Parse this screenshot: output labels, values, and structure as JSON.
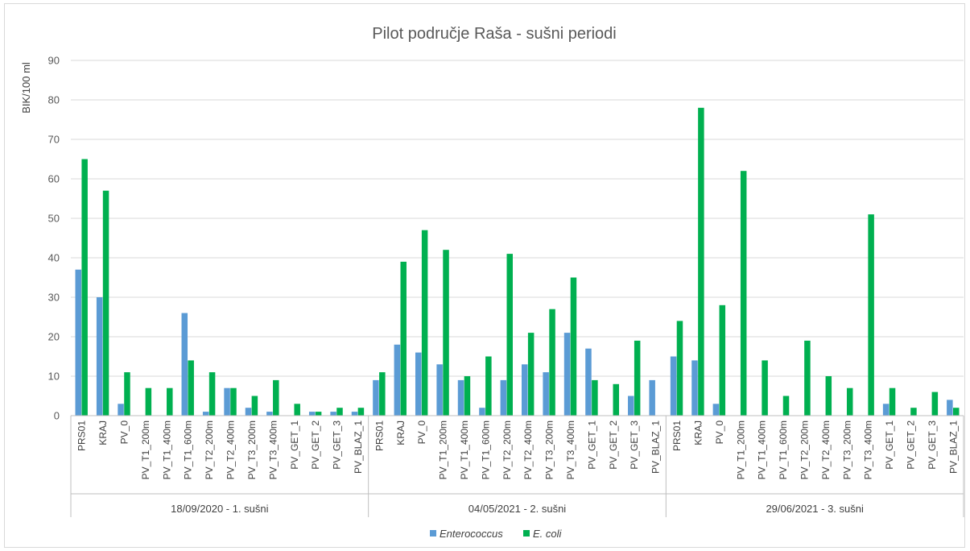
{
  "chart_data": {
    "type": "bar",
    "title": "Pilot područje Raša - sušni periodi",
    "xlabel": "",
    "ylabel": "BIK/100 ml",
    "ylim": [
      0,
      90
    ],
    "yticks": [
      0,
      10,
      20,
      30,
      40,
      50,
      60,
      70,
      80,
      90
    ],
    "grid": true,
    "legend_position": "bottom",
    "colors": {
      "Enterococcus": "#5b9bd5",
      "E. coli": "#00b050"
    },
    "groups": [
      {
        "label": "18/09/2020 - 1. sušni",
        "categories": [
          "PRS01",
          "KRAJ",
          "PV_0",
          "PV_T1_200m",
          "PV_T1_400m",
          "PV_T1_600m",
          "PV_T2_200m",
          "PV_T2_400m",
          "PV_T3_200m",
          "PV_T3_400m",
          "PV_GET_1",
          "PV_GET_2",
          "PV_GET_3",
          "PV_BLAZ_1"
        ]
      },
      {
        "label": "04/05/2021 - 2. sušni",
        "categories": [
          "PRS01",
          "KRAJ",
          "PV_0",
          "PV_T1_200m",
          "PV_T1_400m",
          "PV_T1_600m",
          "PV_T2_200m",
          "PV_T2_400m",
          "PV_T3_200m",
          "PV_T3_400m",
          "PV_GET_1",
          "PV_GET_2",
          "PV_GET_3",
          "PV_BLAZ_1"
        ]
      },
      {
        "label": "29/06/2021 - 3. sušni",
        "categories": [
          "PRS01",
          "KRAJ",
          "PV_0",
          "PV_T1_200m",
          "PV_T1_400m",
          "PV_T1_600m",
          "PV_T2_200m",
          "PV_T2_400m",
          "PV_T3_200m",
          "PV_T3_400m",
          "PV_GET_1",
          "PV_GET_2",
          "PV_GET_3",
          "PV_BLAZ_1"
        ]
      }
    ],
    "series": [
      {
        "name": "Enterococcus",
        "values": [
          37,
          30,
          3,
          0,
          0,
          26,
          1,
          7,
          2,
          1,
          0,
          1,
          1,
          1,
          9,
          18,
          16,
          13,
          9,
          2,
          9,
          13,
          11,
          21,
          17,
          0,
          5,
          9,
          15,
          14,
          3,
          0,
          0,
          0,
          0,
          0,
          0,
          0,
          3,
          0,
          0,
          4
        ]
      },
      {
        "name": "E. coli",
        "values": [
          65,
          57,
          11,
          7,
          7,
          14,
          11,
          7,
          5,
          9,
          3,
          1,
          2,
          2,
          11,
          39,
          47,
          42,
          10,
          15,
          41,
          21,
          27,
          35,
          9,
          8,
          19,
          0,
          24,
          78,
          28,
          62,
          14,
          5,
          19,
          10,
          7,
          51,
          7,
          2,
          6,
          2
        ]
      }
    ]
  }
}
